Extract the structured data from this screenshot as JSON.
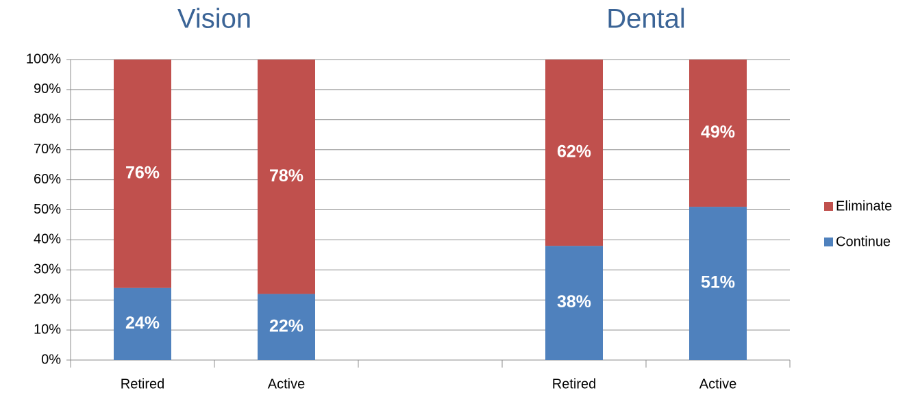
{
  "chart_data": {
    "type": "stacked_bar",
    "annotations": [
      "Vision",
      "Dental"
    ],
    "categories": [
      "Retired",
      "Active",
      null,
      "Retired",
      "Active"
    ],
    "series": [
      {
        "name": "Continue",
        "color": "#4f81bd",
        "values": [
          24,
          22,
          null,
          38,
          51
        ],
        "value_labels": [
          "24%",
          "22%",
          null,
          "38%",
          "51%"
        ]
      },
      {
        "name": "Eliminate",
        "color": "#c0504d",
        "values": [
          76,
          78,
          null,
          62,
          49
        ],
        "value_labels": [
          "76%",
          "78%",
          null,
          "62%",
          "49%"
        ]
      }
    ],
    "ylim": [
      0,
      100
    ],
    "yticks": [
      {
        "value": 0,
        "label": "0%"
      },
      {
        "value": 10,
        "label": "10%"
      },
      {
        "value": 20,
        "label": "20%"
      },
      {
        "value": 30,
        "label": "30%"
      },
      {
        "value": 40,
        "label": "40%"
      },
      {
        "value": 50,
        "label": "50%"
      },
      {
        "value": 60,
        "label": "60%"
      },
      {
        "value": 70,
        "label": "70%"
      },
      {
        "value": 80,
        "label": "80%"
      },
      {
        "value": 90,
        "label": "90%"
      },
      {
        "value": 100,
        "label": "100%"
      }
    ],
    "grid": true,
    "legend": "right"
  }
}
